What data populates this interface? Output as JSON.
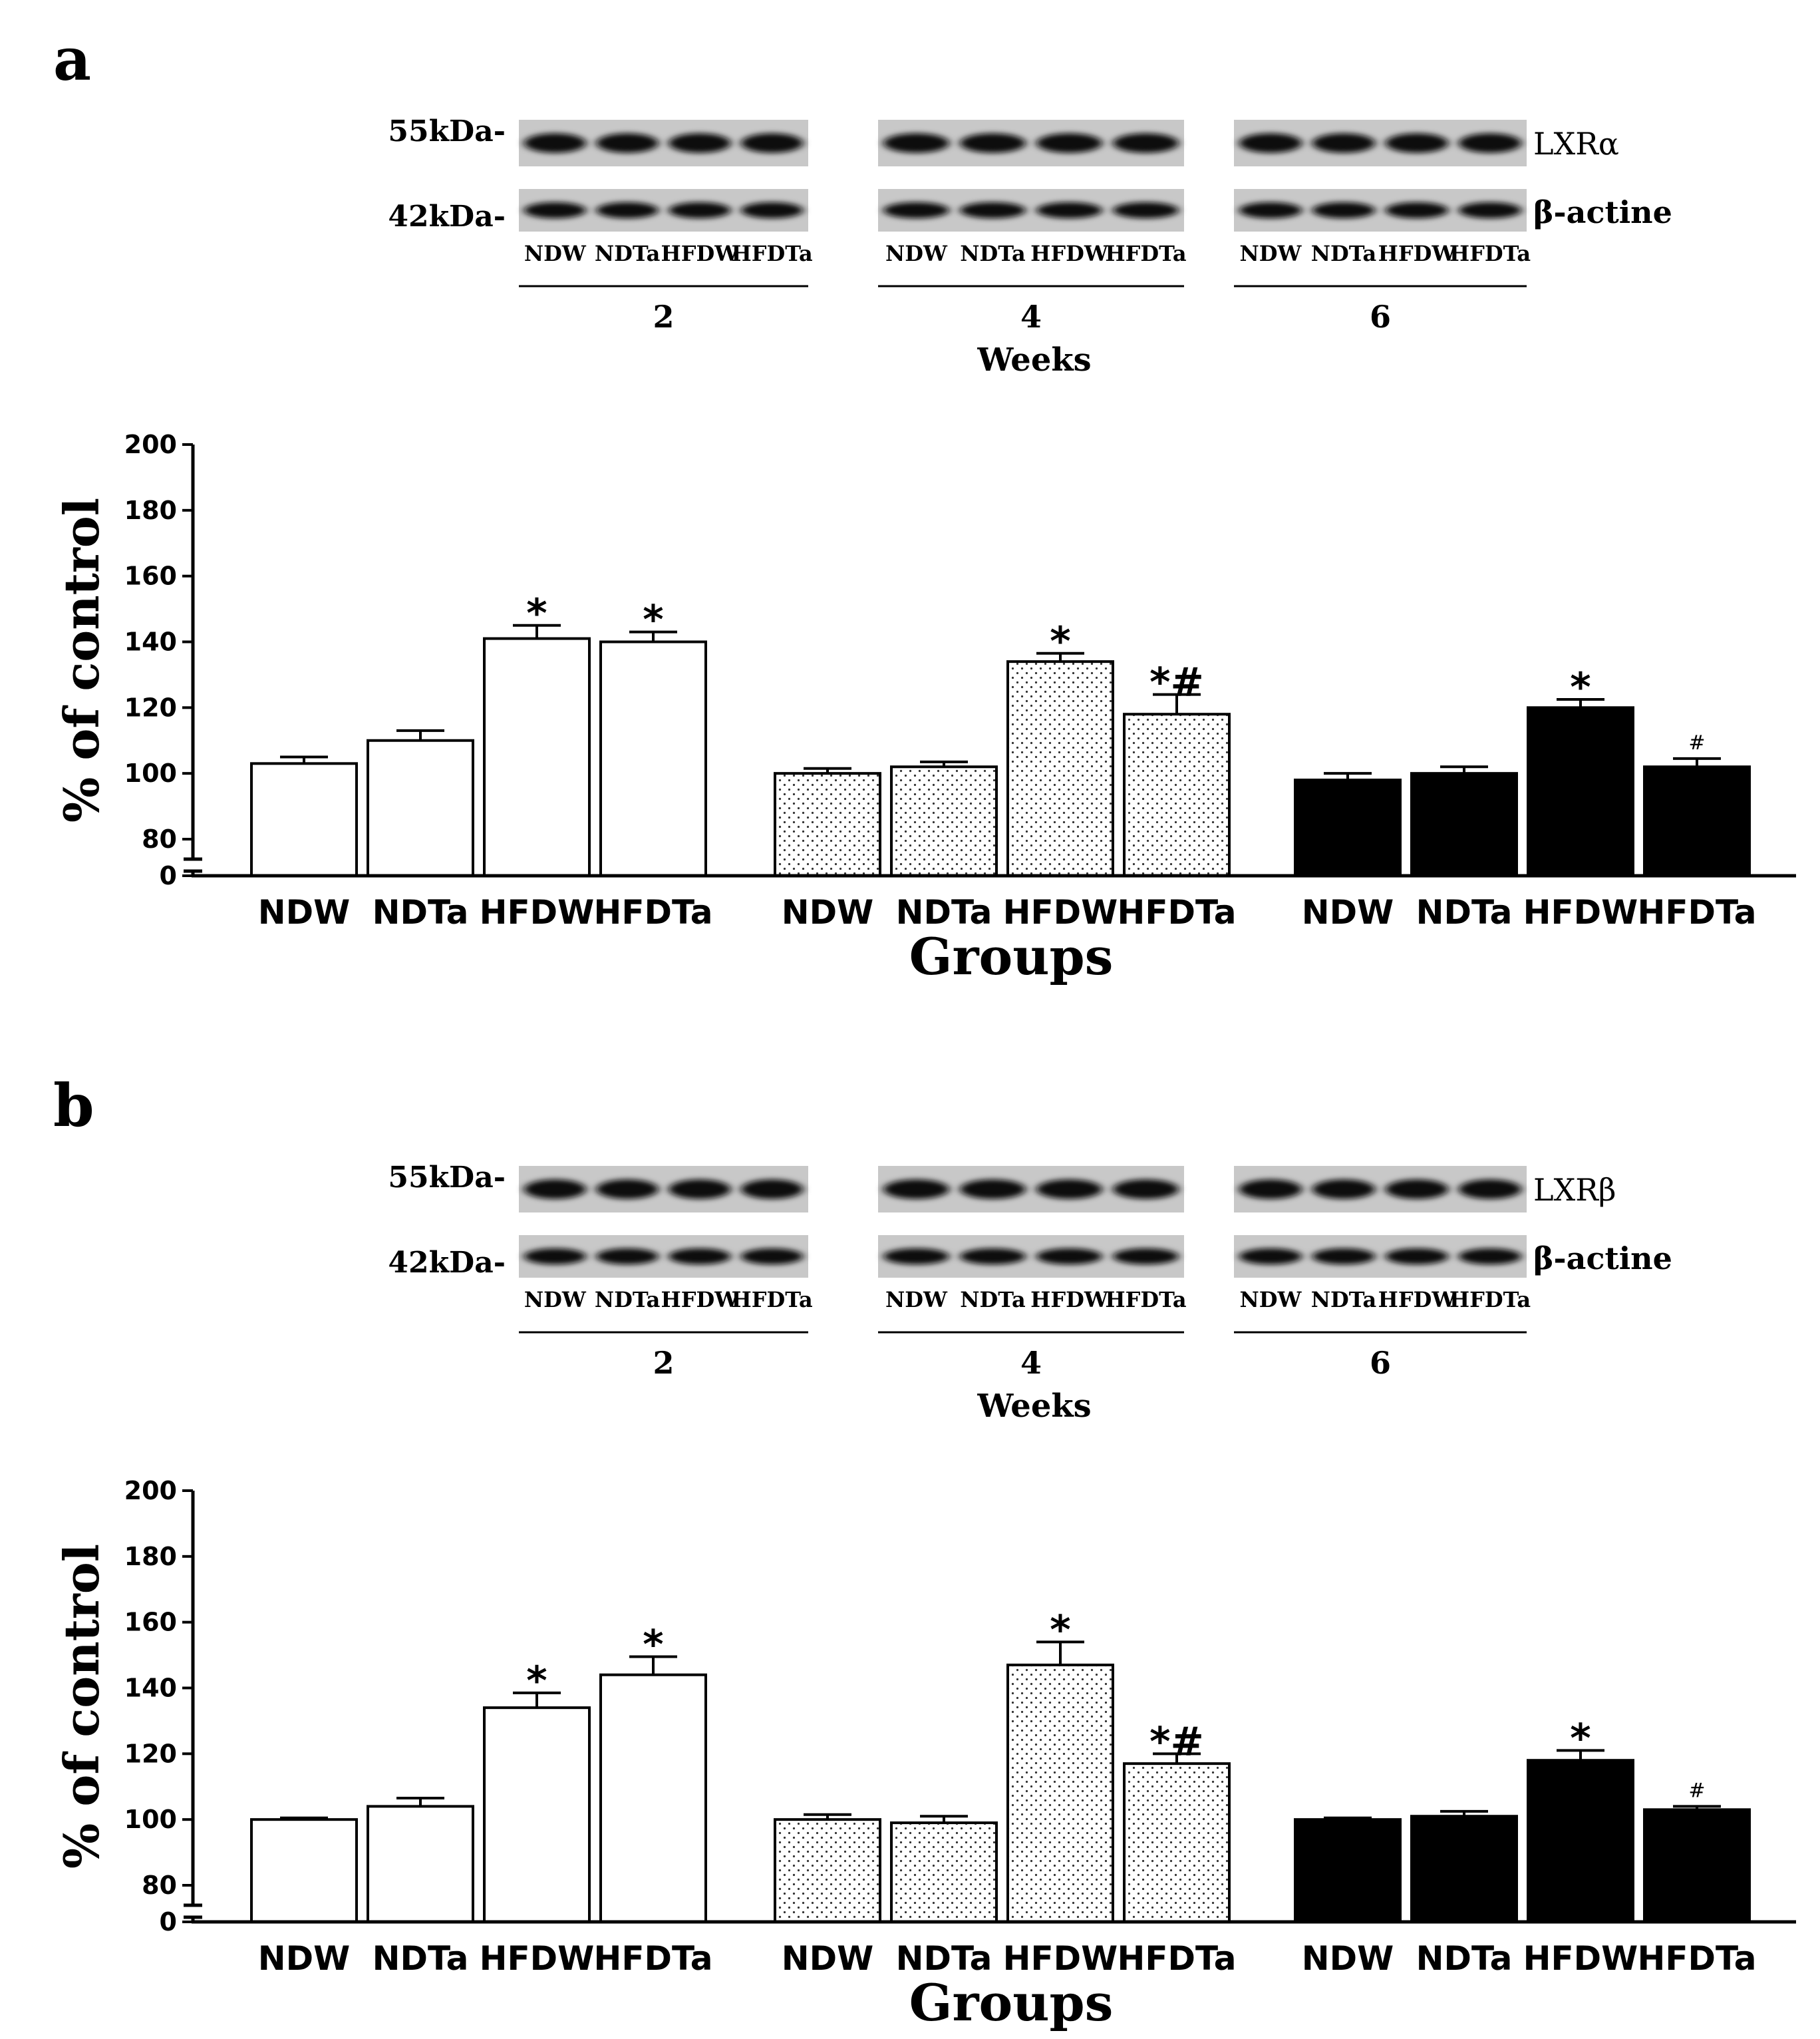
{
  "colors": {
    "ink": "#000000",
    "paper": "#ffffff",
    "dot": "#333333"
  },
  "blot_common": {
    "lane_labels": [
      "NDW",
      "NDTa",
      "HFDW",
      "HFDTa"
    ],
    "weeks": [
      "2",
      "4",
      "6"
    ],
    "weeks_label": "Weeks",
    "kda_top": "55kDa-",
    "kda_bottom": "42kDa-",
    "loading_control": "β-actine"
  },
  "panels": [
    {
      "letter": "a",
      "protein": "LXRα"
    },
    {
      "letter": "b",
      "protein": "LXRβ"
    }
  ],
  "chart_data": [
    {
      "type": "bar",
      "panel": "a",
      "title": "",
      "xlabel": "Groups",
      "ylabel": "% of control",
      "ylim": [
        0,
        200
      ],
      "y_axis_break": [
        0,
        80
      ],
      "yticks": [
        0,
        80,
        100,
        120,
        140,
        160,
        180,
        200
      ],
      "groups": [
        "2",
        "4",
        "6"
      ],
      "categories": [
        "NDW",
        "NDTa",
        "HFDW",
        "HFDTa"
      ],
      "series": [
        {
          "name": "2",
          "fill": "white",
          "values": [
            103,
            110,
            141,
            140
          ],
          "errors": [
            2,
            3,
            4,
            3
          ],
          "marks": [
            "",
            "",
            "*",
            "*"
          ]
        },
        {
          "name": "4",
          "fill": "dotted",
          "values": [
            100,
            102,
            134,
            118
          ],
          "errors": [
            1.5,
            1.5,
            2.5,
            6
          ],
          "marks": [
            "",
            "",
            "*",
            "*#"
          ]
        },
        {
          "name": "6",
          "fill": "black",
          "values": [
            98,
            100,
            120,
            102
          ],
          "errors": [
            2,
            2,
            2.5,
            2.5
          ],
          "marks": [
            "",
            "",
            "*",
            "#"
          ]
        }
      ]
    },
    {
      "type": "bar",
      "panel": "b",
      "title": "",
      "xlabel": "Groups",
      "ylabel": "% of control",
      "ylim": [
        0,
        200
      ],
      "y_axis_break": [
        0,
        80
      ],
      "yticks": [
        0,
        80,
        100,
        120,
        140,
        160,
        180,
        200
      ],
      "groups": [
        "2",
        "4",
        "6"
      ],
      "categories": [
        "NDW",
        "NDTa",
        "HFDW",
        "HFDTa"
      ],
      "series": [
        {
          "name": "2",
          "fill": "white",
          "values": [
            100,
            104,
            134,
            144
          ],
          "errors": [
            0.5,
            2.5,
            4.5,
            5.5
          ],
          "marks": [
            "",
            "",
            "*",
            "*"
          ]
        },
        {
          "name": "4",
          "fill": "dotted",
          "values": [
            100,
            99,
            147,
            117
          ],
          "errors": [
            1.5,
            2,
            7,
            3
          ],
          "marks": [
            "",
            "",
            "*",
            "*#"
          ]
        },
        {
          "name": "6",
          "fill": "black",
          "values": [
            100,
            101,
            118,
            103
          ],
          "errors": [
            0.5,
            1.5,
            3,
            1
          ],
          "marks": [
            "",
            "",
            "*",
            "#"
          ]
        }
      ]
    }
  ]
}
